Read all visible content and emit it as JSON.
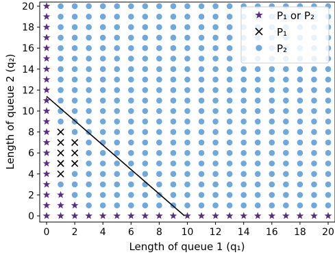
{
  "chart_data": {
    "type": "scatter",
    "xlabel": "Length of queue 1 (q₁)",
    "ylabel": "Length of queue 2 (q₂)",
    "xlim": [
      -0.5,
      20.5
    ],
    "ylim": [
      -0.5,
      20.5
    ],
    "xticks": [
      0,
      2,
      4,
      6,
      8,
      10,
      12,
      14,
      16,
      18,
      20
    ],
    "yticks": [
      0,
      2,
      4,
      6,
      8,
      10,
      12,
      14,
      16,
      18,
      20
    ],
    "grid": false,
    "legend_position": "top-right",
    "colors": {
      "p1_or_p2": "#5b2d86",
      "p1": "#000000",
      "p2": "#6fa8dc",
      "line": "#000000"
    },
    "series": [
      {
        "name": "P₁ or P₂",
        "marker": "star",
        "points": [
          [
            0,
            0
          ],
          [
            0,
            1
          ],
          [
            0,
            2
          ],
          [
            0,
            3
          ],
          [
            0,
            4
          ],
          [
            0,
            5
          ],
          [
            0,
            6
          ],
          [
            0,
            7
          ],
          [
            0,
            8
          ],
          [
            0,
            9
          ],
          [
            0,
            10
          ],
          [
            0,
            11
          ],
          [
            0,
            12
          ],
          [
            0,
            13
          ],
          [
            0,
            14
          ],
          [
            0,
            15
          ],
          [
            0,
            16
          ],
          [
            0,
            17
          ],
          [
            0,
            18
          ],
          [
            0,
            19
          ],
          [
            0,
            20
          ],
          [
            1,
            0
          ],
          [
            2,
            0
          ],
          [
            3,
            0
          ],
          [
            4,
            0
          ],
          [
            5,
            0
          ],
          [
            6,
            0
          ],
          [
            7,
            0
          ],
          [
            8,
            0
          ],
          [
            9,
            0
          ],
          [
            10,
            0
          ],
          [
            11,
            0
          ],
          [
            12,
            0
          ],
          [
            13,
            0
          ],
          [
            14,
            0
          ],
          [
            15,
            0
          ],
          [
            16,
            0
          ],
          [
            17,
            0
          ],
          [
            18,
            0
          ],
          [
            19,
            0
          ],
          [
            20,
            0
          ],
          [
            1,
            1
          ],
          [
            1,
            2
          ],
          [
            2,
            1
          ]
        ]
      },
      {
        "name": "P₁",
        "marker": "x",
        "points": [
          [
            1,
            4
          ],
          [
            1,
            5
          ],
          [
            1,
            6
          ],
          [
            1,
            7
          ],
          [
            1,
            8
          ],
          [
            2,
            5
          ],
          [
            2,
            6
          ],
          [
            2,
            7
          ]
        ]
      },
      {
        "name": "P₂",
        "marker": "circle",
        "rule": "all remaining grid points 0..20 x 0..20"
      }
    ],
    "line": {
      "points": [
        [
          0,
          11.4
        ],
        [
          9.8,
          0
        ]
      ]
    }
  }
}
